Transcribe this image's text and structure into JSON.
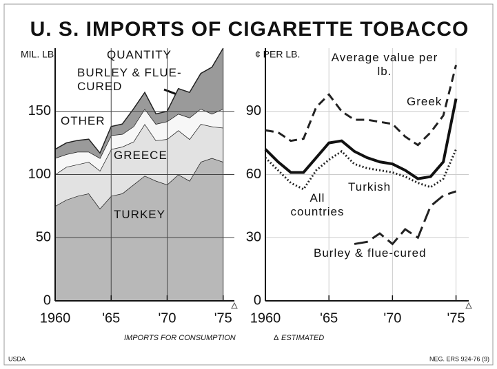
{
  "title": "U. S. IMPORTS OF   CIGARETTE TOBACCO",
  "chart_data": [
    {
      "type": "area",
      "stacked": true,
      "annotation": "QUANTITY",
      "ylabel": "MIL. LB.",
      "x": [
        1960,
        1961,
        1962,
        1963,
        1964,
        1965,
        1966,
        1967,
        1968,
        1969,
        1970,
        1971,
        1972,
        1973,
        1974,
        1975
      ],
      "series": [
        {
          "name": "TURKEY",
          "color": "#b8b8b8",
          "values": [
            75,
            80,
            83,
            85,
            73,
            83,
            85,
            92,
            99,
            95,
            92,
            100,
            95,
            110,
            113,
            110
          ]
        },
        {
          "name": "GREECE",
          "color": "#e2e2e2",
          "values": [
            25,
            26,
            25,
            25,
            30,
            37,
            37,
            34,
            41,
            32,
            36,
            35,
            33,
            30,
            25,
            27
          ]
        },
        {
          "name": "OTHER",
          "color": "#f7f7f7",
          "values": [
            13,
            10,
            10,
            8,
            10,
            11,
            10,
            12,
            12,
            13,
            14,
            13,
            17,
            12,
            10,
            15
          ]
        },
        {
          "name": "BURLEY & FLUE-CURED",
          "color": "#9a9a9a",
          "values": [
            7,
            9,
            9,
            10,
            4,
            7,
            8,
            14,
            13,
            8,
            8,
            20,
            20,
            28,
            37,
            48
          ]
        }
      ],
      "xlim": [
        1960,
        1976
      ],
      "xticks": [
        1960,
        {
          "value": 1965,
          "label": "'65"
        },
        {
          "value": 1970,
          "label": "'70"
        },
        {
          "value": 1975,
          "label": "'75"
        }
      ],
      "ylim": [
        0,
        200
      ],
      "yticks": [
        0,
        50,
        100,
        150
      ],
      "grid": true
    },
    {
      "type": "line",
      "annotation": "Average value per lb.",
      "ylabel": "¢ PER LB.",
      "x": [
        1960,
        1961,
        1962,
        1963,
        1964,
        1965,
        1966,
        1967,
        1968,
        1969,
        1970,
        1971,
        1972,
        1973,
        1974,
        1975
      ],
      "series": [
        {
          "name": "Greek",
          "color": "#222",
          "dash": "dashed",
          "values": [
            81,
            80,
            76,
            77,
            92,
            98,
            90,
            86,
            86,
            85,
            84,
            78,
            74,
            80,
            88,
            112
          ]
        },
        {
          "name": "All countries",
          "color": "#111",
          "dash": "solid",
          "values": [
            72,
            66,
            61,
            61,
            68,
            75,
            76,
            71,
            68,
            66,
            65,
            62,
            58,
            59,
            66,
            96
          ]
        },
        {
          "name": "Turkish",
          "color": "#222",
          "dash": "dotted",
          "values": [
            68,
            62,
            56,
            53,
            62,
            67,
            71,
            65,
            63,
            62,
            61,
            59,
            56,
            54,
            58,
            72
          ]
        },
        {
          "name": "Burley & flue-cured",
          "color": "#222",
          "dash": "longdash",
          "values": [
            null,
            null,
            null,
            null,
            null,
            null,
            null,
            27,
            28,
            32,
            27,
            34,
            30,
            45,
            50,
            52
          ]
        }
      ],
      "xlim": [
        1960,
        1976
      ],
      "xticks": [
        1960,
        {
          "value": 1965,
          "label": "'65"
        },
        {
          "value": 1970,
          "label": "'70"
        },
        {
          "value": 1975,
          "label": "'75"
        }
      ],
      "ylim": [
        0,
        120
      ],
      "yticks": [
        0,
        30,
        60,
        90
      ],
      "grid": true
    }
  ],
  "footnotes": {
    "left": "IMPORTS FOR CONSUMPTION",
    "right": "ESTIMATED"
  },
  "credits": {
    "left": "USDA",
    "right": "NEG. ERS 924-76 (9)"
  }
}
